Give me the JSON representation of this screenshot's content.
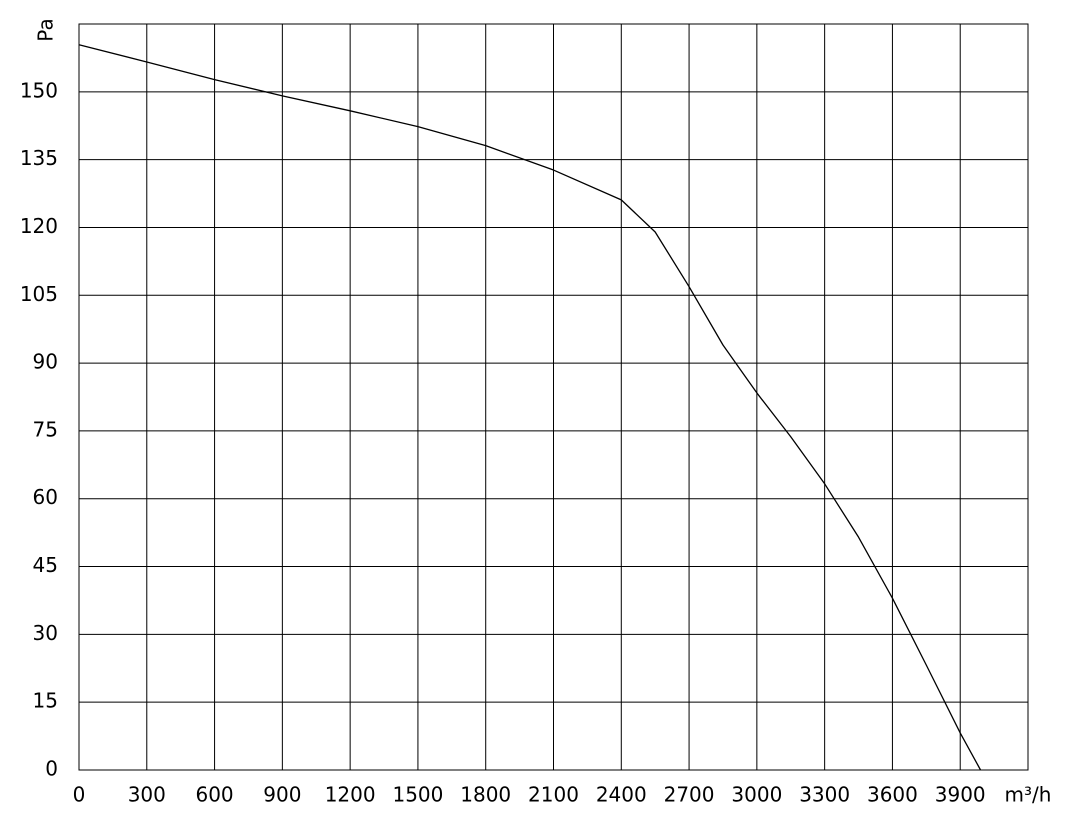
{
  "chart_data": {
    "type": "line",
    "x_label": "m³/h",
    "y_label": "Pa",
    "xlim": [
      0,
      4200
    ],
    "ylim": [
      0,
      165
    ],
    "xticks": [
      0,
      300,
      600,
      900,
      1200,
      1500,
      1800,
      2100,
      2400,
      2700,
      3000,
      3300,
      3600,
      3900
    ],
    "yticks": [
      0,
      15,
      30,
      45,
      60,
      75,
      90,
      105,
      120,
      135,
      150
    ],
    "grid": true,
    "series": [
      {
        "color": "#000000",
        "x": [
          0,
          300,
          600,
          900,
          1200,
          1500,
          1800,
          2100,
          2400,
          2550,
          2700,
          2850,
          3000,
          3150,
          3300,
          3450,
          3600,
          3750,
          3900,
          3990
        ],
        "values": [
          160.4,
          156.6,
          152.7,
          149.1,
          145.8,
          142.3,
          138.1,
          132.7,
          126.1,
          119,
          106.9,
          94,
          83.4,
          73.7,
          63.3,
          51.5,
          38,
          23.2,
          8.2,
          0
        ]
      }
    ]
  }
}
